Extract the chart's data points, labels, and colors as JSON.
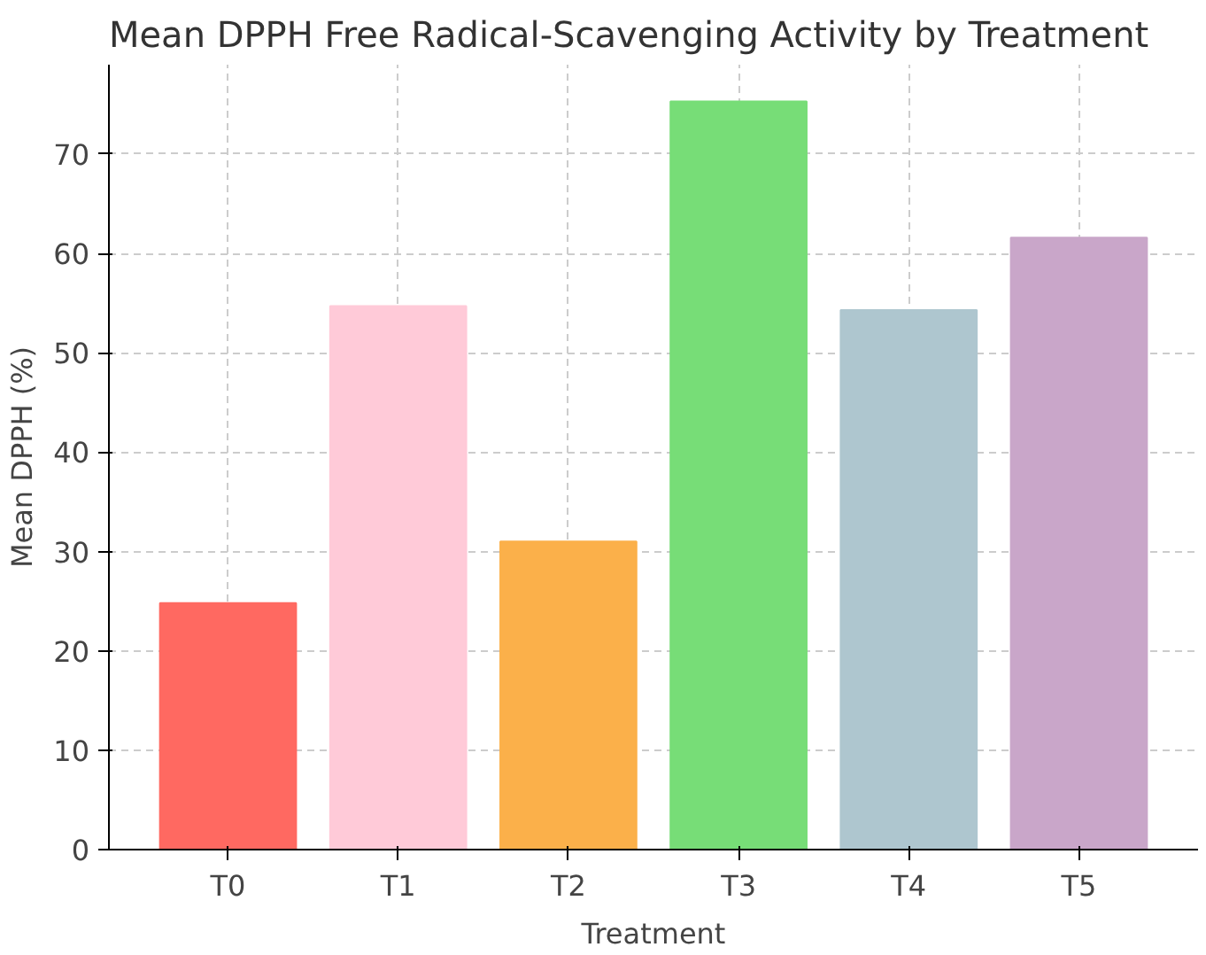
{
  "chart_data": {
    "type": "bar",
    "title": "Mean DPPH Free Radical-Scavenging Activity by Treatment",
    "xlabel": "Treatment",
    "ylabel": "Mean DPPH (%)",
    "categories": [
      "T0",
      "T1",
      "T2",
      "T3",
      "T4",
      "T5"
    ],
    "values": [
      24.8,
      54.7,
      31.0,
      75.3,
      54.3,
      61.6
    ],
    "colors": [
      "#ff6961",
      "#ffcad8",
      "#fbb04a",
      "#77dd77",
      "#aec6cf",
      "#c9a6c9"
    ],
    "ylim": [
      0,
      79
    ],
    "yticks": [
      0,
      10,
      20,
      30,
      40,
      50,
      60,
      70
    ],
    "grid": true
  }
}
